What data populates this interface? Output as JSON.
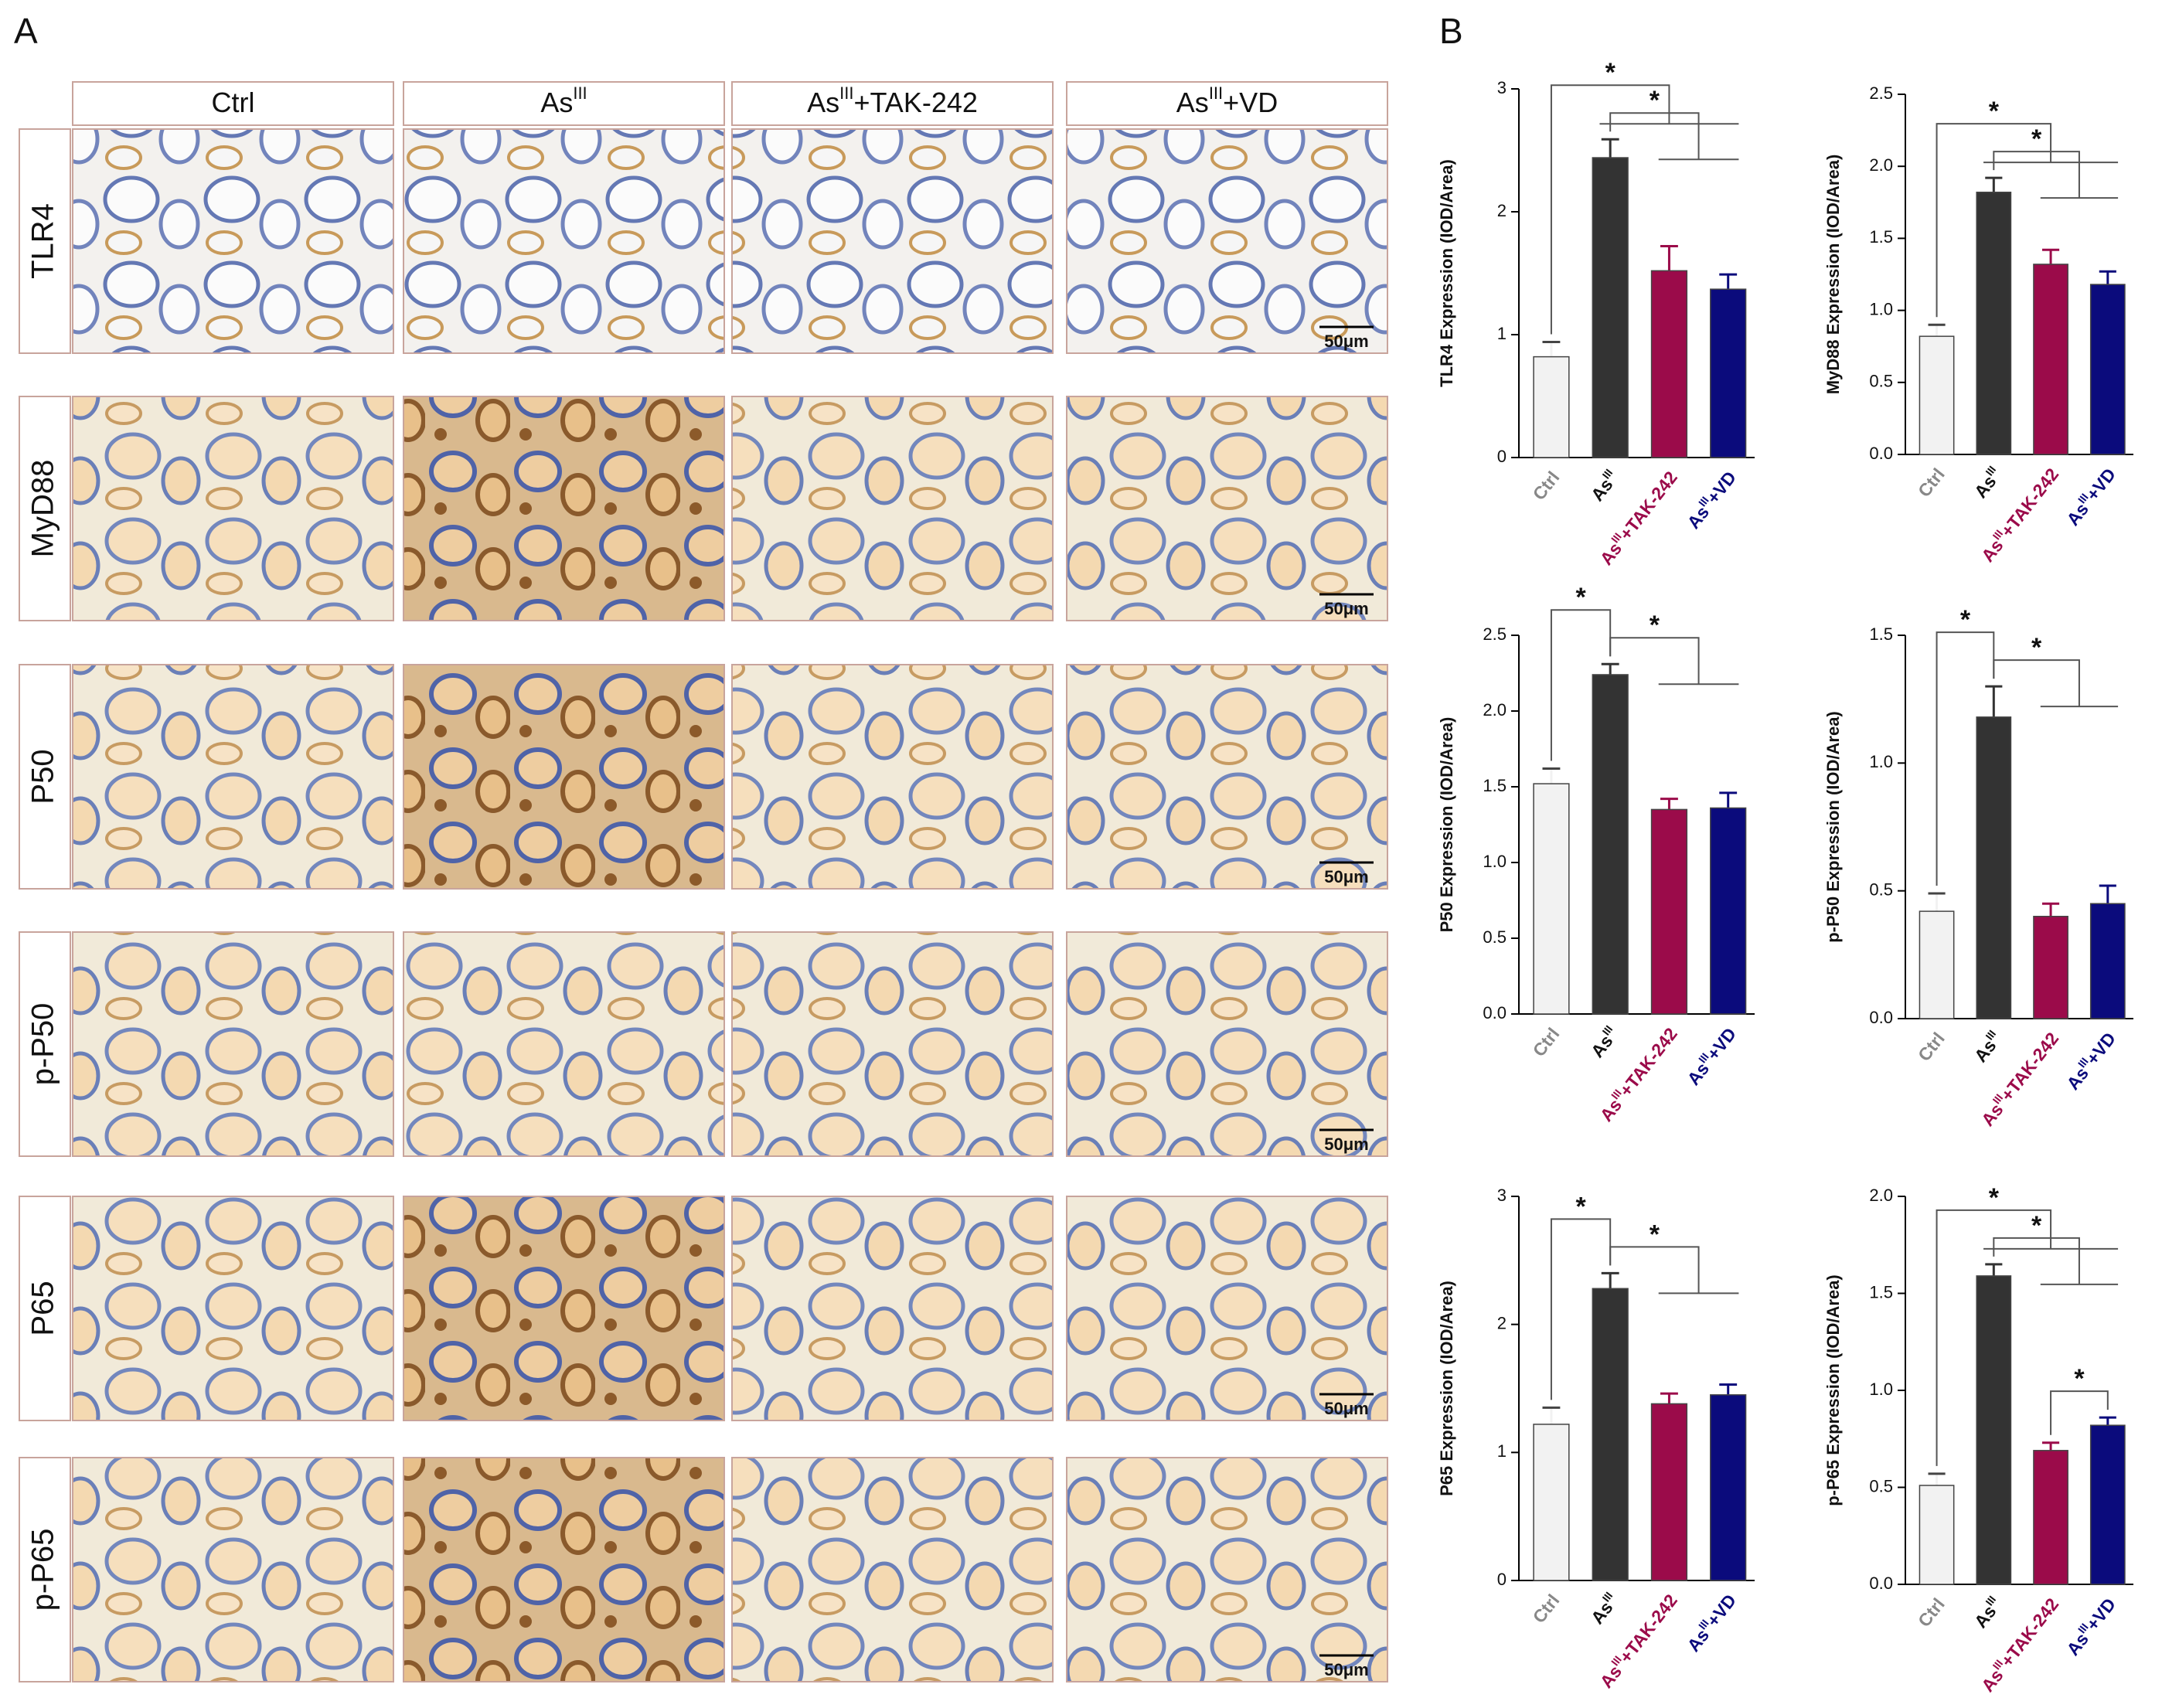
{
  "panel_a": {
    "label": "A",
    "columns": [
      [
        "Ctrl"
      ],
      [
        "As",
        "III"
      ],
      [
        "As",
        "III",
        "+TAK-242"
      ],
      [
        "As",
        "III",
        "+VD"
      ]
    ],
    "rows": [
      "TLR4",
      "MyD88",
      "P50",
      "p-P50",
      "P65",
      "p-P65"
    ],
    "scale_bars": [
      "50μm",
      "50μm",
      "50μm",
      "50μm",
      "50μm",
      "50μm"
    ]
  },
  "panel_b": {
    "label": "B"
  },
  "chart_data": [
    {
      "type": "bar",
      "ylabel": "TLR4 Expression (IOD/Area)",
      "categories": [
        [
          "Ctrl"
        ],
        [
          "As",
          "III"
        ],
        [
          "As",
          "III",
          "+TAK-242"
        ],
        [
          "As",
          "III",
          "+VD"
        ]
      ],
      "values": [
        0.82,
        2.44,
        1.52,
        1.37
      ],
      "errors": [
        0.12,
        0.15,
        0.2,
        0.12
      ],
      "colors": [
        "#f2f2f2",
        "#333333",
        "#9b0b4a",
        "#0b0b7c"
      ],
      "label_colors": [
        "#888888",
        "#111111",
        "#9b0b4a",
        "#0b0b7c"
      ],
      "edge_color": "#444444",
      "ylim": [
        0,
        3
      ],
      "yticks": [
        0,
        1,
        2,
        3
      ],
      "significance": [
        {
          "label": "*",
          "groups": [
            [
              0
            ],
            [
              1,
              2,
              3
            ]
          ]
        },
        {
          "label": "*",
          "groups": [
            [
              1
            ],
            [
              2,
              3
            ]
          ]
        }
      ]
    },
    {
      "type": "bar",
      "ylabel": "MyD88 Expression (IOD/Area)",
      "categories": [
        [
          "Ctrl"
        ],
        [
          "As",
          "III"
        ],
        [
          "As",
          "III",
          "+TAK-242"
        ],
        [
          "As",
          "III",
          "+VD"
        ]
      ],
      "values": [
        0.82,
        1.82,
        1.32,
        1.18
      ],
      "errors": [
        0.08,
        0.1,
        0.1,
        0.09
      ],
      "colors": [
        "#f2f2f2",
        "#333333",
        "#9b0b4a",
        "#0b0b7c"
      ],
      "label_colors": [
        "#888888",
        "#111111",
        "#9b0b4a",
        "#0b0b7c"
      ],
      "edge_color": "#444444",
      "ylim": [
        0,
        2.5
      ],
      "yticks": [
        {
          "value": 0,
          "label": "0.0"
        },
        0.5,
        {
          "value": 1,
          "label": "1.0"
        },
        1.5,
        {
          "value": 2,
          "label": "2.0"
        },
        2.5
      ],
      "significance": [
        {
          "label": "*",
          "groups": [
            [
              0
            ],
            [
              1,
              2,
              3
            ]
          ]
        },
        {
          "label": "*",
          "groups": [
            [
              1
            ],
            [
              2,
              3
            ]
          ]
        }
      ]
    },
    {
      "type": "bar",
      "ylabel": "P50 Expression (IOD/Area)",
      "categories": [
        [
          "Ctrl"
        ],
        [
          "As",
          "III"
        ],
        [
          "As",
          "III",
          "+TAK-242"
        ],
        [
          "As",
          "III",
          "+VD"
        ]
      ],
      "values": [
        1.52,
        2.24,
        1.35,
        1.36
      ],
      "errors": [
        0.1,
        0.07,
        0.07,
        0.1
      ],
      "colors": [
        "#f2f2f2",
        "#333333",
        "#9b0b4a",
        "#0b0b7c"
      ],
      "label_colors": [
        "#888888",
        "#111111",
        "#9b0b4a",
        "#0b0b7c"
      ],
      "edge_color": "#444444",
      "ylim": [
        0,
        2.5
      ],
      "yticks": [
        {
          "value": 0,
          "label": "0.0"
        },
        0.5,
        {
          "value": 1,
          "label": "1.0"
        },
        1.5,
        {
          "value": 2,
          "label": "2.0"
        },
        2.5
      ],
      "significance": [
        {
          "label": "*",
          "groups": [
            [
              0
            ],
            [
              1
            ]
          ]
        },
        {
          "label": "*",
          "groups": [
            [
              1
            ],
            [
              2,
              3
            ]
          ]
        }
      ]
    },
    {
      "type": "bar",
      "ylabel": "p-P50 Expression (IOD/Area)",
      "categories": [
        [
          "Ctrl"
        ],
        [
          "As",
          "III"
        ],
        [
          "As",
          "III",
          "+TAK-242"
        ],
        [
          "As",
          "III",
          "+VD"
        ]
      ],
      "values": [
        0.42,
        1.18,
        0.4,
        0.45
      ],
      "errors": [
        0.07,
        0.12,
        0.05,
        0.07
      ],
      "colors": [
        "#f2f2f2",
        "#333333",
        "#9b0b4a",
        "#0b0b7c"
      ],
      "label_colors": [
        "#888888",
        "#111111",
        "#9b0b4a",
        "#0b0b7c"
      ],
      "edge_color": "#444444",
      "ylim": [
        0,
        1.5
      ],
      "yticks": [
        {
          "value": 0,
          "label": "0.0"
        },
        0.5,
        {
          "value": 1,
          "label": "1.0"
        },
        1.5
      ],
      "significance": [
        {
          "label": "*",
          "groups": [
            [
              0
            ],
            [
              1
            ]
          ]
        },
        {
          "label": "*",
          "groups": [
            [
              1
            ],
            [
              2,
              3
            ]
          ]
        }
      ]
    },
    {
      "type": "bar",
      "ylabel": "P65 Expression (IOD/Area)",
      "categories": [
        [
          "Ctrl"
        ],
        [
          "As",
          "III"
        ],
        [
          "As",
          "III",
          "+TAK-242"
        ],
        [
          "As",
          "III",
          "+VD"
        ]
      ],
      "values": [
        1.22,
        2.28,
        1.38,
        1.45
      ],
      "errors": [
        0.13,
        0.12,
        0.08,
        0.08
      ],
      "colors": [
        "#f2f2f2",
        "#333333",
        "#9b0b4a",
        "#0b0b7c"
      ],
      "label_colors": [
        "#888888",
        "#111111",
        "#9b0b4a",
        "#0b0b7c"
      ],
      "edge_color": "#444444",
      "ylim": [
        0,
        3
      ],
      "yticks": [
        0,
        1,
        2,
        3
      ],
      "significance": [
        {
          "label": "*",
          "groups": [
            [
              0
            ],
            [
              1
            ]
          ]
        },
        {
          "label": "*",
          "groups": [
            [
              1
            ],
            [
              2,
              3
            ]
          ]
        }
      ]
    },
    {
      "type": "bar",
      "ylabel": "p-P65 Expression (IOD/Area)",
      "categories": [
        [
          "Ctrl"
        ],
        [
          "As",
          "III"
        ],
        [
          "As",
          "III",
          "+TAK-242"
        ],
        [
          "As",
          "III",
          "+VD"
        ]
      ],
      "values": [
        0.51,
        1.59,
        0.69,
        0.82
      ],
      "errors": [
        0.06,
        0.06,
        0.04,
        0.04
      ],
      "colors": [
        "#f2f2f2",
        "#333333",
        "#9b0b4a",
        "#0b0b7c"
      ],
      "label_colors": [
        "#888888",
        "#111111",
        "#9b0b4a",
        "#0b0b7c"
      ],
      "edge_color": "#444444",
      "ylim": [
        0,
        2
      ],
      "yticks": [
        {
          "value": 0,
          "label": "0.0"
        },
        0.5,
        {
          "value": 1,
          "label": "1.0"
        },
        1.5,
        {
          "value": 2,
          "label": "2.0"
        }
      ],
      "significance": [
        {
          "label": "*",
          "groups": [
            [
              0
            ],
            [
              1,
              2,
              3
            ]
          ]
        },
        {
          "label": "*",
          "groups": [
            [
              1
            ],
            [
              2,
              3
            ]
          ]
        },
        {
          "label": "*",
          "groups": [
            [
              2
            ],
            [
              3
            ]
          ]
        }
      ]
    }
  ]
}
